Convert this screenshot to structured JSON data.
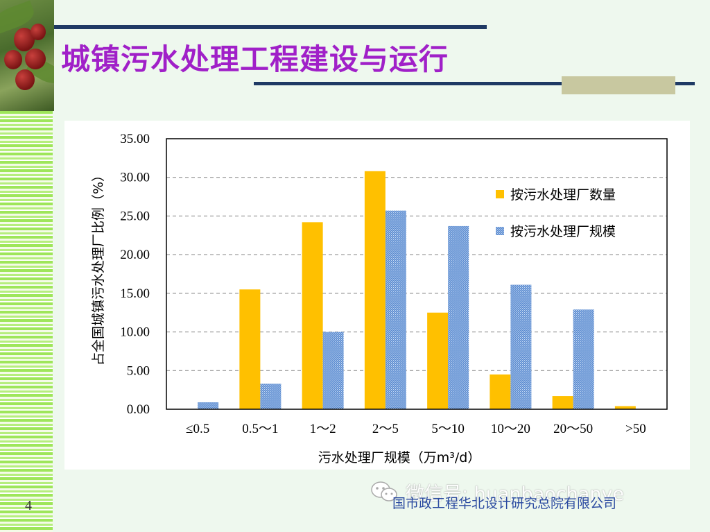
{
  "slide": {
    "title": "城镇污水处理工程建设与运行",
    "page_number": "4",
    "watermark": "微信号: huanbaochanye",
    "footer": "国市政工程华北设计研究总院有限公司"
  },
  "chart_data": {
    "type": "bar",
    "ylabel": "占全国城镇污水处理厂比例（%）",
    "xlabel": "污水处理厂规模（万m³/d）",
    "ylim": [
      0,
      35
    ],
    "yticks": [
      "0.00",
      "5.00",
      "10.00",
      "15.00",
      "20.00",
      "25.00",
      "30.00",
      "35.00"
    ],
    "categories": [
      "≤0.5",
      "0.5～1",
      "1～2",
      "2～5",
      "5～10",
      "10～20",
      "20～50",
      ">50"
    ],
    "legend_position": "right",
    "grid": true,
    "series": [
      {
        "name": "按污水处理厂数量",
        "color": "#ffc000",
        "values": [
          0,
          15.5,
          24.2,
          30.8,
          12.5,
          4.5,
          1.7,
          0.4
        ]
      },
      {
        "name": "按污水处理厂规模",
        "color": "#4a78c0",
        "values": [
          0.9,
          3.3,
          10.0,
          25.7,
          23.7,
          16.1,
          12.9,
          0
        ]
      }
    ]
  }
}
